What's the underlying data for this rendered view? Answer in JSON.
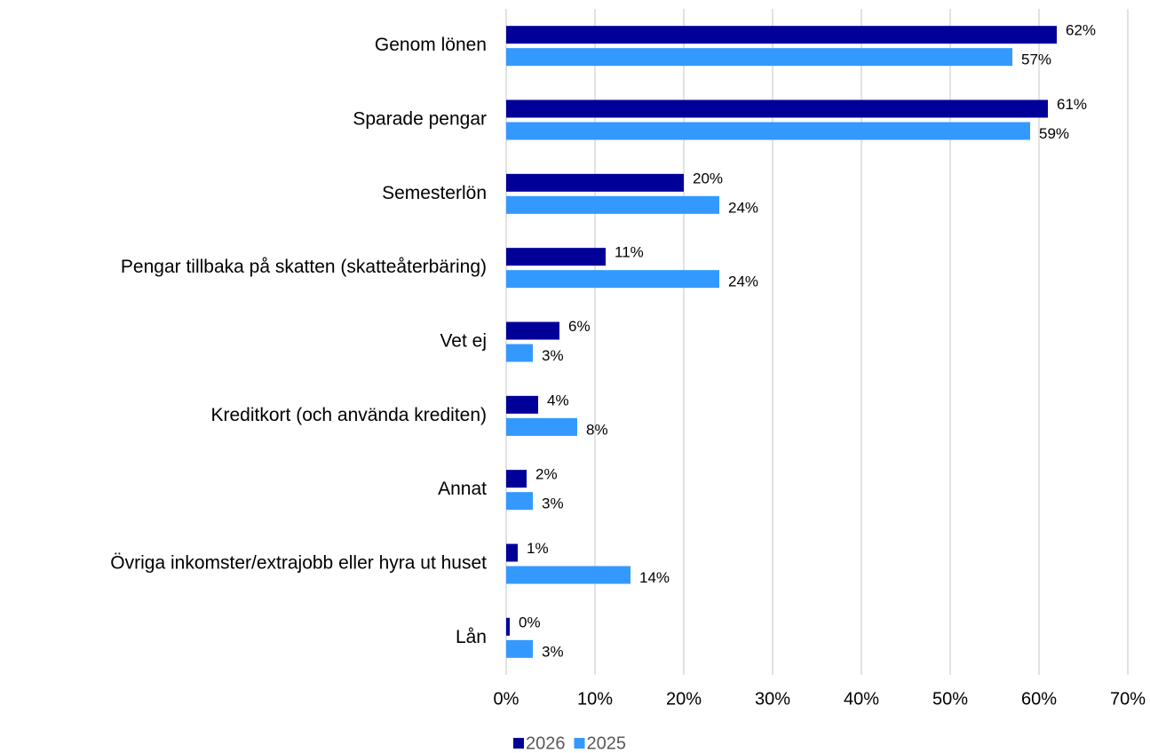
{
  "chart_data": {
    "type": "hbar",
    "categories": [
      "Genom lönen",
      "Sparade pengar",
      "Semesterlön",
      "Pengar tillbaka på skatten (skatteåterbäring)",
      "Vet ej",
      "Kreditkort (och använda krediten)",
      "Annat",
      "Övriga inkomster/extrajobb eller hyra ut huset",
      "Lån"
    ],
    "series": [
      {
        "name": "2026",
        "color": "#000099",
        "values": [
          62,
          61,
          20,
          11.2,
          6,
          3.6,
          2.3,
          1.3,
          0.4
        ],
        "value_labels": [
          "62%",
          "61%",
          "20%",
          "11%",
          "6%",
          "4%",
          "2%",
          "1%",
          "0%"
        ]
      },
      {
        "name": "2025",
        "color": "#3399ff",
        "values": [
          57,
          59,
          24,
          24,
          3,
          8,
          3,
          14,
          3
        ],
        "value_labels": [
          "57%",
          "59%",
          "24%",
          "24%",
          "3%",
          "8%",
          "3%",
          "14%",
          "3%"
        ]
      }
    ],
    "xlim": [
      0,
      70
    ],
    "xticks": [
      {
        "value": 0,
        "label": "0%"
      },
      {
        "value": 10,
        "label": "10%"
      },
      {
        "value": 20,
        "label": "20%"
      },
      {
        "value": 30,
        "label": "30%"
      },
      {
        "value": 40,
        "label": "40%"
      },
      {
        "value": 50,
        "label": "50%"
      },
      {
        "value": 60,
        "label": "60%"
      },
      {
        "value": 70,
        "label": "70%"
      }
    ],
    "grid": true,
    "legend": "bottom"
  }
}
